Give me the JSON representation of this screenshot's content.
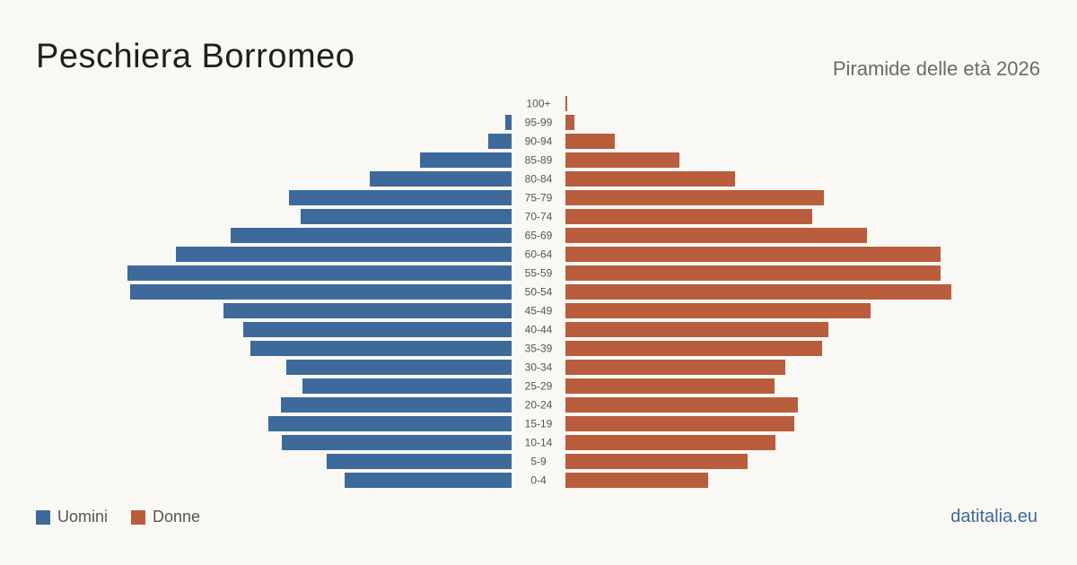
{
  "header": {
    "title": "Peschiera Borromeo",
    "subtitle": "Piramide delle età 2026"
  },
  "legend": {
    "men_label": "Uomini",
    "women_label": "Donne"
  },
  "brand": "datitalia.eu",
  "colors": {
    "men": "#3d6a9a",
    "women": "#b95d3c",
    "background": "#faf8f4",
    "label": "#555555"
  },
  "chart_data": {
    "type": "bar",
    "orientation": "horizontal-pyramid",
    "categories": [
      "100+",
      "95-99",
      "90-94",
      "85-89",
      "80-84",
      "75-79",
      "70-74",
      "65-69",
      "60-64",
      "55-59",
      "50-54",
      "45-49",
      "40-44",
      "35-39",
      "30-34",
      "25-29",
      "20-24",
      "15-19",
      "10-14",
      "5-9",
      "0-4"
    ],
    "series": [
      {
        "name": "Uomini",
        "values": [
          0,
          7,
          26,
          102,
          158,
          248,
          235,
          313,
          374,
          428,
          425,
          321,
          299,
          291,
          251,
          233,
          257,
          271,
          256,
          206,
          186
        ]
      },
      {
        "name": "Donne",
        "values": [
          2,
          10,
          55,
          127,
          189,
          288,
          275,
          336,
          418,
          418,
          430,
          340,
          293,
          286,
          245,
          233,
          259,
          255,
          234,
          203,
          159
        ]
      }
    ],
    "xlim": [
      0,
      430
    ],
    "grid": false,
    "legend_position": "bottom-left"
  }
}
